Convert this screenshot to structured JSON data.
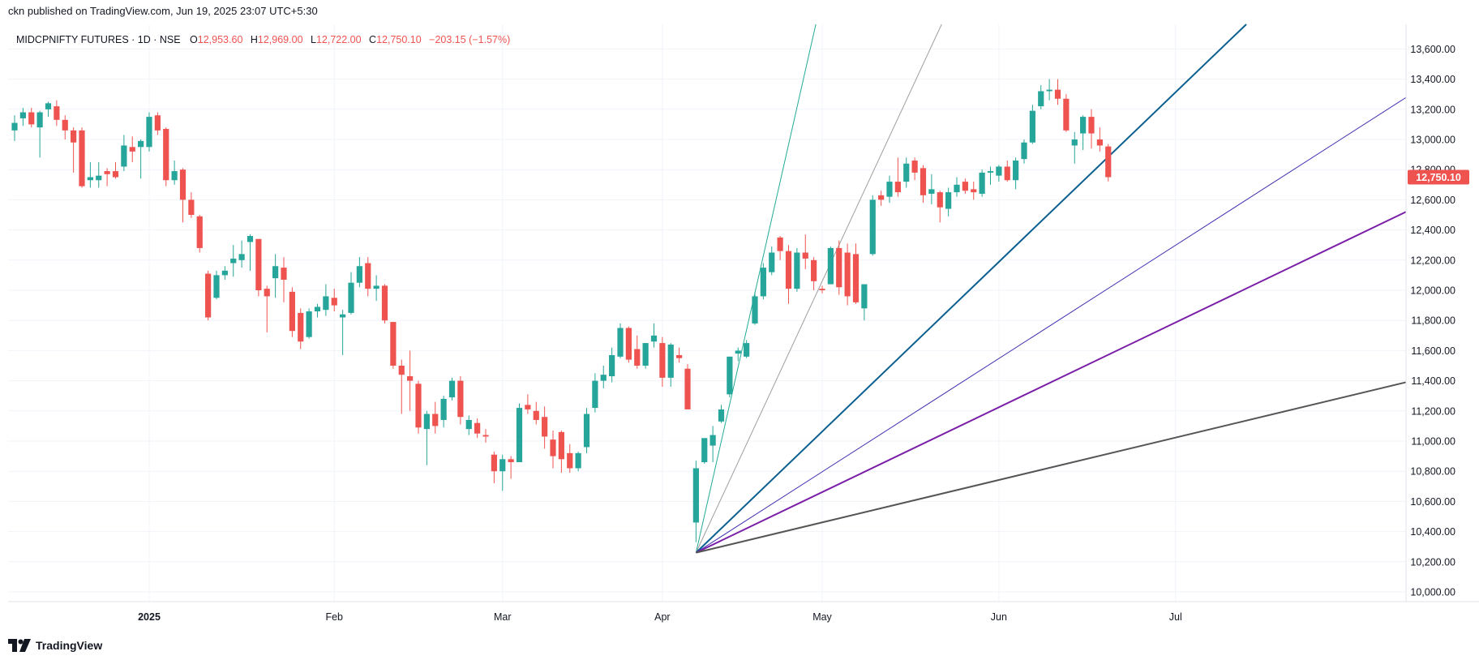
{
  "header": {
    "published": "ckn published on TradingView.com, Jun 19, 2025 23:07 UTC+5:30"
  },
  "legend": {
    "symbol": "MIDCPNIFTY FUTURES · 1D · NSE",
    "o_label": "O",
    "o": "12,953.60",
    "h_label": "H",
    "h": "12,969.00",
    "l_label": "L",
    "l": "12,722.00",
    "c_label": "C",
    "c": "12,750.10",
    "change": "−203.15 (−1.57%)"
  },
  "footer": {
    "brand": "TradingView",
    "logo_icon": "tradingview-logo-icon"
  },
  "colors": {
    "up": "#26a69a",
    "down": "#ef5350",
    "grid": "#f0f3fa",
    "axis_text": "#131722",
    "price_label_bg": "#ef5350"
  },
  "chart_data": {
    "type": "candlestick",
    "title": "",
    "xlabel": "",
    "ylabel": "",
    "ylim": [
      9900,
      13780
    ],
    "grid": true,
    "y_ticks": [
      10000,
      10200,
      10400,
      10600,
      10800,
      11000,
      11200,
      11400,
      11600,
      11800,
      12000,
      12200,
      12400,
      12600,
      12800,
      13000,
      13200,
      13400,
      13600
    ],
    "y_tick_labels": [
      "10,000.00",
      "10,200.00",
      "10,400.00",
      "10,600.00",
      "10,800.00",
      "11,000.00",
      "11,200.00",
      "11,400.00",
      "11,600.00",
      "11,800.00",
      "12,000.00",
      "12,200.00",
      "12,400.00",
      "12,600.00",
      "12,800.00",
      "13,000.00",
      "13,200.00",
      "13,400.00",
      "13,600.00"
    ],
    "x_ticks": [
      {
        "label": "2025",
        "i": 16,
        "bold": true
      },
      {
        "label": "Feb",
        "i": 38
      },
      {
        "label": "Mar",
        "i": 58
      },
      {
        "label": "Apr",
        "i": 77
      },
      {
        "label": "May",
        "i": 96
      },
      {
        "label": "Jun",
        "i": 117
      },
      {
        "label": "Jul",
        "i": 138
      }
    ],
    "last_price": "12,750.10",
    "last_value": 12750.1,
    "x_count": 141,
    "candles": [
      {
        "o": 13060,
        "h": 13160,
        "l": 12990,
        "c": 13110
      },
      {
        "o": 13140,
        "h": 13210,
        "l": 13090,
        "c": 13180
      },
      {
        "o": 13180,
        "h": 13210,
        "l": 13080,
        "c": 13100
      },
      {
        "o": 13080,
        "h": 13190,
        "l": 12880,
        "c": 13180
      },
      {
        "o": 13200,
        "h": 13250,
        "l": 13150,
        "c": 13240
      },
      {
        "o": 13220,
        "h": 13260,
        "l": 13090,
        "c": 13130
      },
      {
        "o": 13130,
        "h": 13160,
        "l": 13000,
        "c": 13060
      },
      {
        "o": 13060,
        "h": 13080,
        "l": 12780,
        "c": 12980
      },
      {
        "o": 13060,
        "h": 13080,
        "l": 12680,
        "c": 12690
      },
      {
        "o": 12730,
        "h": 12850,
        "l": 12680,
        "c": 12750
      },
      {
        "o": 12730,
        "h": 12850,
        "l": 12680,
        "c": 12760
      },
      {
        "o": 12790,
        "h": 12810,
        "l": 12690,
        "c": 12770
      },
      {
        "o": 12790,
        "h": 12850,
        "l": 12740,
        "c": 12750
      },
      {
        "o": 12820,
        "h": 13030,
        "l": 12790,
        "c": 12960
      },
      {
        "o": 12950,
        "h": 13020,
        "l": 12850,
        "c": 12920
      },
      {
        "o": 12950,
        "h": 13000,
        "l": 12740,
        "c": 12990
      },
      {
        "o": 12950,
        "h": 13180,
        "l": 12920,
        "c": 13150
      },
      {
        "o": 13160,
        "h": 13180,
        "l": 13030,
        "c": 13060
      },
      {
        "o": 13070,
        "h": 13080,
        "l": 12690,
        "c": 12730
      },
      {
        "o": 12730,
        "h": 12860,
        "l": 12700,
        "c": 12790
      },
      {
        "o": 12800,
        "h": 12810,
        "l": 12450,
        "c": 12600
      },
      {
        "o": 12600,
        "h": 12650,
        "l": 12480,
        "c": 12500
      },
      {
        "o": 12490,
        "h": 12500,
        "l": 12250,
        "c": 12280
      },
      {
        "o": 12110,
        "h": 12130,
        "l": 11800,
        "c": 11820
      },
      {
        "o": 11950,
        "h": 12130,
        "l": 11940,
        "c": 12100
      },
      {
        "o": 12100,
        "h": 12160,
        "l": 12070,
        "c": 12130
      },
      {
        "o": 12180,
        "h": 12300,
        "l": 12090,
        "c": 12210
      },
      {
        "o": 12200,
        "h": 12330,
        "l": 12150,
        "c": 12240
      },
      {
        "o": 12320,
        "h": 12370,
        "l": 12130,
        "c": 12360
      },
      {
        "o": 12340,
        "h": 12340,
        "l": 11960,
        "c": 12000
      },
      {
        "o": 12010,
        "h": 12030,
        "l": 11720,
        "c": 11960
      },
      {
        "o": 12080,
        "h": 12240,
        "l": 11950,
        "c": 12160
      },
      {
        "o": 12150,
        "h": 12220,
        "l": 11920,
        "c": 12070
      },
      {
        "o": 11990,
        "h": 12020,
        "l": 11690,
        "c": 11730
      },
      {
        "o": 11850,
        "h": 11880,
        "l": 11610,
        "c": 11660
      },
      {
        "o": 11690,
        "h": 11880,
        "l": 11680,
        "c": 11860
      },
      {
        "o": 11860,
        "h": 11910,
        "l": 11820,
        "c": 11890
      },
      {
        "o": 11870,
        "h": 12040,
        "l": 11830,
        "c": 11960
      },
      {
        "o": 11950,
        "h": 12010,
        "l": 11860,
        "c": 11900
      },
      {
        "o": 11820,
        "h": 11870,
        "l": 11570,
        "c": 11840
      },
      {
        "o": 11850,
        "h": 12120,
        "l": 11840,
        "c": 12050
      },
      {
        "o": 12050,
        "h": 12220,
        "l": 12020,
        "c": 12160
      },
      {
        "o": 12180,
        "h": 12220,
        "l": 11960,
        "c": 12010
      },
      {
        "o": 12010,
        "h": 12100,
        "l": 11930,
        "c": 12030
      },
      {
        "o": 12030,
        "h": 12040,
        "l": 11780,
        "c": 11800
      },
      {
        "o": 11790,
        "h": 11790,
        "l": 11480,
        "c": 11500
      },
      {
        "o": 11500,
        "h": 11540,
        "l": 11180,
        "c": 11440
      },
      {
        "o": 11430,
        "h": 11600,
        "l": 11200,
        "c": 11400
      },
      {
        "o": 11380,
        "h": 11400,
        "l": 11050,
        "c": 11090
      },
      {
        "o": 11080,
        "h": 11200,
        "l": 10840,
        "c": 11180
      },
      {
        "o": 11180,
        "h": 11260,
        "l": 11050,
        "c": 11100
      },
      {
        "o": 11140,
        "h": 11300,
        "l": 11090,
        "c": 11280
      },
      {
        "o": 11290,
        "h": 11420,
        "l": 11270,
        "c": 11400
      },
      {
        "o": 11400,
        "h": 11430,
        "l": 11110,
        "c": 11160
      },
      {
        "o": 11080,
        "h": 11170,
        "l": 11040,
        "c": 11140
      },
      {
        "o": 11120,
        "h": 11150,
        "l": 11020,
        "c": 11050
      },
      {
        "o": 11040,
        "h": 11080,
        "l": 10990,
        "c": 11030
      },
      {
        "o": 10910,
        "h": 10930,
        "l": 10720,
        "c": 10800
      },
      {
        "o": 10800,
        "h": 10910,
        "l": 10670,
        "c": 10880
      },
      {
        "o": 10880,
        "h": 10900,
        "l": 10750,
        "c": 10860
      },
      {
        "o": 10860,
        "h": 11250,
        "l": 10860,
        "c": 11220
      },
      {
        "o": 11240,
        "h": 11310,
        "l": 11180,
        "c": 11210
      },
      {
        "o": 11200,
        "h": 11260,
        "l": 11110,
        "c": 11140
      },
      {
        "o": 11160,
        "h": 11230,
        "l": 10950,
        "c": 11030
      },
      {
        "o": 11010,
        "h": 11070,
        "l": 10820,
        "c": 10900
      },
      {
        "o": 11060,
        "h": 11070,
        "l": 10790,
        "c": 10880
      },
      {
        "o": 10920,
        "h": 10980,
        "l": 10790,
        "c": 10820
      },
      {
        "o": 10820,
        "h": 10930,
        "l": 10800,
        "c": 10920
      },
      {
        "o": 10960,
        "h": 11220,
        "l": 10920,
        "c": 11180
      },
      {
        "o": 11220,
        "h": 11450,
        "l": 11190,
        "c": 11400
      },
      {
        "o": 11400,
        "h": 11500,
        "l": 11350,
        "c": 11440
      },
      {
        "o": 11430,
        "h": 11620,
        "l": 11390,
        "c": 11570
      },
      {
        "o": 11560,
        "h": 11780,
        "l": 11550,
        "c": 11750
      },
      {
        "o": 11750,
        "h": 11760,
        "l": 11520,
        "c": 11540
      },
      {
        "o": 11610,
        "h": 11700,
        "l": 11480,
        "c": 11500
      },
      {
        "o": 11500,
        "h": 11650,
        "l": 11480,
        "c": 11650
      },
      {
        "o": 11660,
        "h": 11780,
        "l": 11620,
        "c": 11700
      },
      {
        "o": 11650,
        "h": 11690,
        "l": 11360,
        "c": 11420
      },
      {
        "o": 11420,
        "h": 11650,
        "l": 11360,
        "c": 11640
      },
      {
        "o": 11570,
        "h": 11620,
        "l": 11520,
        "c": 11550
      },
      {
        "o": 11480,
        "h": 11510,
        "l": 11220,
        "c": 11210
      },
      {
        "o": 10460,
        "h": 10870,
        "l": 10330,
        "c": 10820
      },
      {
        "o": 10860,
        "h": 11000,
        "l": 10850,
        "c": 11020
      },
      {
        "o": 10970,
        "h": 11100,
        "l": 10860,
        "c": 11040
      },
      {
        "o": 11130,
        "h": 11240,
        "l": 11120,
        "c": 11210
      },
      {
        "o": 11310,
        "h": 11560,
        "l": 11290,
        "c": 11560
      },
      {
        "o": 11580,
        "h": 11620,
        "l": 11530,
        "c": 11600
      },
      {
        "o": 11560,
        "h": 11670,
        "l": 11550,
        "c": 11650
      },
      {
        "o": 11780,
        "h": 11990,
        "l": 11770,
        "c": 11960
      },
      {
        "o": 11960,
        "h": 12180,
        "l": 11940,
        "c": 12150
      },
      {
        "o": 12120,
        "h": 12290,
        "l": 12100,
        "c": 12250
      },
      {
        "o": 12350,
        "h": 12360,
        "l": 12200,
        "c": 12260
      },
      {
        "o": 12260,
        "h": 12300,
        "l": 11910,
        "c": 12010
      },
      {
        "o": 12010,
        "h": 12280,
        "l": 11990,
        "c": 12250
      },
      {
        "o": 12250,
        "h": 12370,
        "l": 12140,
        "c": 12210
      },
      {
        "o": 12200,
        "h": 12220,
        "l": 12000,
        "c": 12060
      },
      {
        "o": 12010,
        "h": 12030,
        "l": 11980,
        "c": 12000
      },
      {
        "o": 12040,
        "h": 12290,
        "l": 12040,
        "c": 12280
      },
      {
        "o": 12280,
        "h": 12330,
        "l": 11970,
        "c": 12020
      },
      {
        "o": 12250,
        "h": 12310,
        "l": 11900,
        "c": 11960
      },
      {
        "o": 12240,
        "h": 12310,
        "l": 11910,
        "c": 11920
      },
      {
        "o": 11880,
        "h": 12040,
        "l": 11800,
        "c": 12040
      },
      {
        "o": 12240,
        "h": 12630,
        "l": 12230,
        "c": 12600
      },
      {
        "o": 12630,
        "h": 12660,
        "l": 12560,
        "c": 12600
      },
      {
        "o": 12620,
        "h": 12760,
        "l": 12580,
        "c": 12720
      },
      {
        "o": 12720,
        "h": 12880,
        "l": 12620,
        "c": 12650
      },
      {
        "o": 12720,
        "h": 12880,
        "l": 12680,
        "c": 12840
      },
      {
        "o": 12860,
        "h": 12880,
        "l": 12730,
        "c": 12780
      },
      {
        "o": 12810,
        "h": 12830,
        "l": 12580,
        "c": 12630
      },
      {
        "o": 12640,
        "h": 12770,
        "l": 12570,
        "c": 12670
      },
      {
        "o": 12650,
        "h": 12660,
        "l": 12450,
        "c": 12550
      },
      {
        "o": 12540,
        "h": 12680,
        "l": 12490,
        "c": 12650
      },
      {
        "o": 12650,
        "h": 12750,
        "l": 12620,
        "c": 12700
      },
      {
        "o": 12720,
        "h": 12740,
        "l": 12640,
        "c": 12660
      },
      {
        "o": 12670,
        "h": 12720,
        "l": 12600,
        "c": 12650
      },
      {
        "o": 12640,
        "h": 12800,
        "l": 12620,
        "c": 12780
      },
      {
        "o": 12780,
        "h": 12820,
        "l": 12700,
        "c": 12790
      },
      {
        "o": 12760,
        "h": 12830,
        "l": 12720,
        "c": 12820
      },
      {
        "o": 12820,
        "h": 12860,
        "l": 12720,
        "c": 12730
      },
      {
        "o": 12730,
        "h": 12880,
        "l": 12670,
        "c": 12860
      },
      {
        "o": 12870,
        "h": 13000,
        "l": 12840,
        "c": 12980
      },
      {
        "o": 12980,
        "h": 13230,
        "l": 12970,
        "c": 13190
      },
      {
        "o": 13220,
        "h": 13360,
        "l": 13200,
        "c": 13320
      },
      {
        "o": 13320,
        "h": 13400,
        "l": 13260,
        "c": 13330
      },
      {
        "o": 13330,
        "h": 13400,
        "l": 13230,
        "c": 13270
      },
      {
        "o": 13270,
        "h": 13300,
        "l": 13050,
        "c": 13060
      },
      {
        "o": 12960,
        "h": 13050,
        "l": 12840,
        "c": 13000
      },
      {
        "o": 13040,
        "h": 13160,
        "l": 12930,
        "c": 13150
      },
      {
        "o": 13150,
        "h": 13200,
        "l": 12940,
        "c": 13040
      },
      {
        "o": 13000,
        "h": 13080,
        "l": 12920,
        "c": 12960
      },
      {
        "o": 12953.6,
        "h": 12969,
        "l": 12722,
        "c": 12750.1
      }
    ],
    "fan": {
      "origin": {
        "i": 81,
        "v": 10260
      },
      "lines": [
        {
          "color": "#22ab94",
          "width": 1,
          "through": {
            "i": 96,
            "v": 13950
          }
        },
        {
          "color": "#9e9e9e",
          "width": 1,
          "through": {
            "i": 98,
            "v": 12300
          }
        },
        {
          "color": "#0b5f8f",
          "width": 2,
          "through": {
            "i": 140,
            "v": 13420
          }
        },
        {
          "color": "#3f2fb0",
          "width": 1,
          "through": {
            "i": 140,
            "v": 12370
          }
        },
        {
          "color": "#7a1fa8",
          "width": 2,
          "through": {
            "i": 140,
            "v": 11840
          }
        },
        {
          "color": "#555555",
          "width": 2,
          "through": {
            "i": 140,
            "v": 11050
          }
        }
      ]
    }
  }
}
